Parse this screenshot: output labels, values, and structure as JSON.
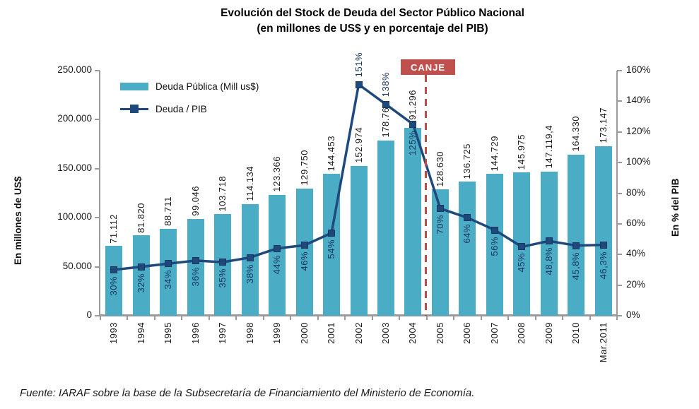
{
  "title": {
    "line1": "Evolución del Stock de Deuda del Sector Público Nacional",
    "line2": "(en millones de US$ y en porcentaje del PIB)"
  },
  "legend": {
    "bars_label": "Deuda Pública (Mill us$)",
    "line_label": "Deuda / PIB"
  },
  "annotation": {
    "canje": "CANJE"
  },
  "source": "Fuente: IARAF sobre la base de la Subsecretaría de Financiamiento del Ministerio de Economía.",
  "colors": {
    "bar": "#4BACC6",
    "line": "#1F497D",
    "marker_border": "#17375E",
    "pct_text": "#17365D",
    "value_text": "#1a1a1a",
    "axis": "#9a9a9a",
    "canje_bg": "#C0504D",
    "divider": "#BE4B48"
  },
  "chart_data": {
    "type": "bar+line",
    "title": "Evolución del Stock de Deuda del Sector Público Nacional (en millones de US$ y en porcentaje del PIB)",
    "categories": [
      "1993",
      "1994",
      "1995",
      "1996",
      "1997",
      "1998",
      "1999",
      "2000",
      "2001",
      "2002",
      "2003",
      "2004",
      "2005",
      "2006",
      "2007",
      "2008",
      "2009",
      "2010",
      "Mar.2011"
    ],
    "series": [
      {
        "name": "Deuda Pública (Mill us$)",
        "type": "bar",
        "axis": "left",
        "values": [
          71112,
          81820,
          88711,
          99046,
          103718,
          114134,
          123366,
          129750,
          144453,
          152974,
          178768,
          191296,
          128630,
          136725,
          144729,
          145975,
          147119.4,
          164330,
          173147
        ],
        "labels": [
          "71.112",
          "81.820",
          "88.711",
          "99.046",
          "103.718",
          "114.134",
          "123.366",
          "129.750",
          "144.453",
          "152.974",
          "178.768",
          "191.296",
          "128.630",
          "136.725",
          "144.729",
          "145.975",
          "147.119,4",
          "164.330",
          "173.147"
        ]
      },
      {
        "name": "Deuda / PIB",
        "type": "line",
        "axis": "right",
        "values": [
          30,
          32,
          34,
          36,
          35,
          38,
          44,
          46,
          54,
          151,
          138,
          125,
          70,
          64,
          56,
          45,
          48.8,
          45.8,
          46.3
        ],
        "labels": [
          "30%",
          "32%",
          "34%",
          "36%",
          "35%",
          "38%",
          "44%",
          "46%",
          "54%",
          "151%",
          "138%",
          "125%",
          "70%",
          "64%",
          "56%",
          "45%",
          "48,8%",
          "45,8%",
          "46,3%"
        ]
      }
    ],
    "left_axis": {
      "label": "En millones de US$",
      "min": 0,
      "max": 250000,
      "ticks": [
        "0",
        "50.000",
        "100.000",
        "150.000",
        "200.000",
        "250.000"
      ]
    },
    "right_axis": {
      "label": "En % del PIB",
      "min": 0,
      "max": 160,
      "ticks": [
        "0%",
        "20%",
        "40%",
        "60%",
        "80%",
        "100%",
        "120%",
        "140%",
        "160%"
      ]
    },
    "annotation_divider_after": "2004",
    "legend_position": "top-left-inside",
    "grid": false
  }
}
